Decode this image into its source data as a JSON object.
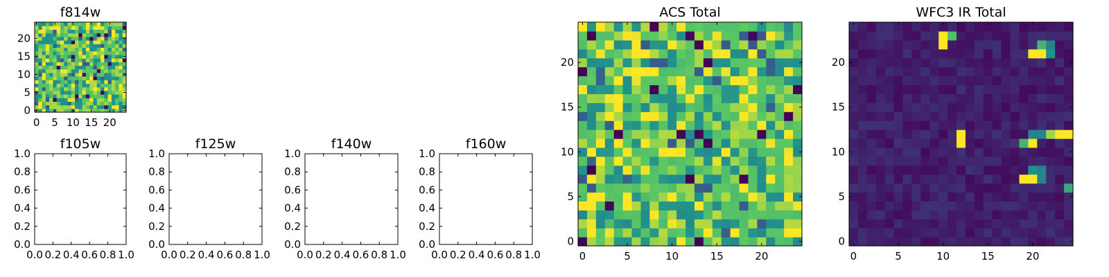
{
  "figure": {
    "colormap": [
      "#440154",
      "#3b528b",
      "#21918c",
      "#5ec962",
      "#fde725"
    ]
  },
  "chart_data": [
    {
      "id": "f814w",
      "type": "heatmap",
      "title": "f814w",
      "xlim": [
        -0.5,
        24.5
      ],
      "ylim": [
        -0.5,
        24.5
      ],
      "xticks": [
        "0",
        "5",
        "10",
        "15",
        "20"
      ],
      "xtick_values": [
        0,
        5,
        10,
        15,
        20
      ],
      "yticks": [
        "0",
        "5",
        "10",
        "15",
        "20"
      ],
      "ytick_values": [
        0,
        5,
        10,
        15,
        20
      ],
      "grid_size": [
        25,
        25
      ],
      "value_range": [
        0,
        1
      ],
      "pattern": "noisy field, mostly green/yellow-green values with scattered teal, blue and a few dark purple pixels"
    },
    {
      "id": "f105w",
      "type": "heatmap",
      "title": "f105w",
      "empty": true,
      "xlim": [
        0,
        1
      ],
      "ylim": [
        0,
        1
      ],
      "xticks": [
        "0.0",
        "0.2",
        "0.4",
        "0.6",
        "0.8",
        "1.0"
      ],
      "xtick_values": [
        0,
        0.2,
        0.4,
        0.6,
        0.8,
        1.0
      ],
      "yticks": [
        "0.0",
        "0.2",
        "0.4",
        "0.6",
        "0.8",
        "1.0"
      ],
      "ytick_values": [
        0,
        0.2,
        0.4,
        0.6,
        0.8,
        1.0
      ]
    },
    {
      "id": "f125w",
      "type": "heatmap",
      "title": "f125w",
      "empty": true,
      "xlim": [
        0,
        1
      ],
      "ylim": [
        0,
        1
      ],
      "xticks": [
        "0.0",
        "0.2",
        "0.4",
        "0.6",
        "0.8",
        "1.0"
      ],
      "xtick_values": [
        0,
        0.2,
        0.4,
        0.6,
        0.8,
        1.0
      ],
      "yticks": [
        "0.0",
        "0.2",
        "0.4",
        "0.6",
        "0.8",
        "1.0"
      ],
      "ytick_values": [
        0,
        0.2,
        0.4,
        0.6,
        0.8,
        1.0
      ]
    },
    {
      "id": "f140w",
      "type": "heatmap",
      "title": "f140w",
      "empty": true,
      "xlim": [
        0,
        1
      ],
      "ylim": [
        0,
        1
      ],
      "xticks": [
        "0.0",
        "0.2",
        "0.4",
        "0.6",
        "0.8",
        "1.0"
      ],
      "xtick_values": [
        0,
        0.2,
        0.4,
        0.6,
        0.8,
        1.0
      ],
      "yticks": [
        "0.0",
        "0.2",
        "0.4",
        "0.6",
        "0.8",
        "1.0"
      ],
      "ytick_values": [
        0,
        0.2,
        0.4,
        0.6,
        0.8,
        1.0
      ]
    },
    {
      "id": "f160w",
      "type": "heatmap",
      "title": "f160w",
      "empty": true,
      "xlim": [
        0,
        1
      ],
      "ylim": [
        0,
        1
      ],
      "xticks": [
        "0.0",
        "0.2",
        "0.4",
        "0.6",
        "0.8",
        "1.0"
      ],
      "xtick_values": [
        0,
        0.2,
        0.4,
        0.6,
        0.8,
        1.0
      ],
      "yticks": [
        "0.0",
        "0.2",
        "0.4",
        "0.6",
        "0.8",
        "1.0"
      ],
      "ytick_values": [
        0,
        0.2,
        0.4,
        0.6,
        0.8,
        1.0
      ]
    },
    {
      "id": "acs",
      "type": "heatmap",
      "title": "ACS Total",
      "xlim": [
        -0.5,
        24.5
      ],
      "ylim": [
        -0.5,
        24.5
      ],
      "xticks": [
        "0",
        "5",
        "10",
        "15",
        "20"
      ],
      "xtick_values": [
        0,
        5,
        10,
        15,
        20
      ],
      "yticks": [
        "0",
        "5",
        "10",
        "15",
        "20"
      ],
      "ytick_values": [
        0,
        5,
        10,
        15,
        20
      ],
      "grid_size": [
        25,
        25
      ],
      "value_range": [
        0,
        1
      ],
      "pattern": "noisy field, mostly green/yellow-green values with scattered teal, blue and a few dark purple pixels"
    },
    {
      "id": "wfc3",
      "type": "heatmap",
      "title": "WFC3 IR Total",
      "xlim": [
        -0.5,
        24.5
      ],
      "ylim": [
        -0.5,
        24.5
      ],
      "xticks": [
        "0",
        "5",
        "10",
        "15",
        "20"
      ],
      "xtick_values": [
        0,
        5,
        10,
        15,
        20
      ],
      "yticks": [
        "0",
        "5",
        "10",
        "15",
        "20"
      ],
      "ytick_values": [
        0,
        5,
        10,
        15,
        20
      ],
      "grid_size": [
        25,
        25
      ],
      "value_range": [
        0,
        1
      ],
      "pattern": "dark purple background with a few bright compact sources",
      "hotspots": [
        {
          "x": 10,
          "y": 23,
          "value": 1.0
        },
        {
          "x": 10,
          "y": 22,
          "value": 1.0
        },
        {
          "x": 11,
          "y": 23,
          "value": 0.7
        },
        {
          "x": 20,
          "y": 21,
          "value": 1.0
        },
        {
          "x": 21,
          "y": 21,
          "value": 1.0
        },
        {
          "x": 21,
          "y": 22,
          "value": 0.65
        },
        {
          "x": 22,
          "y": 22,
          "value": 0.45
        },
        {
          "x": 22,
          "y": 21,
          "value": 0.5
        },
        {
          "x": 12,
          "y": 12,
          "value": 1.0
        },
        {
          "x": 12,
          "y": 11,
          "value": 1.0
        },
        {
          "x": 19,
          "y": 11,
          "value": 0.65
        },
        {
          "x": 20,
          "y": 11,
          "value": 1.0
        },
        {
          "x": 20,
          "y": 12,
          "value": 0.45
        },
        {
          "x": 21,
          "y": 12,
          "value": 0.45
        },
        {
          "x": 22,
          "y": 12,
          "value": 0.85
        },
        {
          "x": 23,
          "y": 12,
          "value": 1.0
        },
        {
          "x": 24,
          "y": 12,
          "value": 1.0
        },
        {
          "x": 19,
          "y": 7,
          "value": 1.0
        },
        {
          "x": 20,
          "y": 7,
          "value": 1.0
        },
        {
          "x": 20,
          "y": 8,
          "value": 0.5
        },
        {
          "x": 21,
          "y": 8,
          "value": 0.45
        },
        {
          "x": 21,
          "y": 7,
          "value": 0.45
        },
        {
          "x": 24,
          "y": 6,
          "value": 0.6
        }
      ]
    }
  ]
}
